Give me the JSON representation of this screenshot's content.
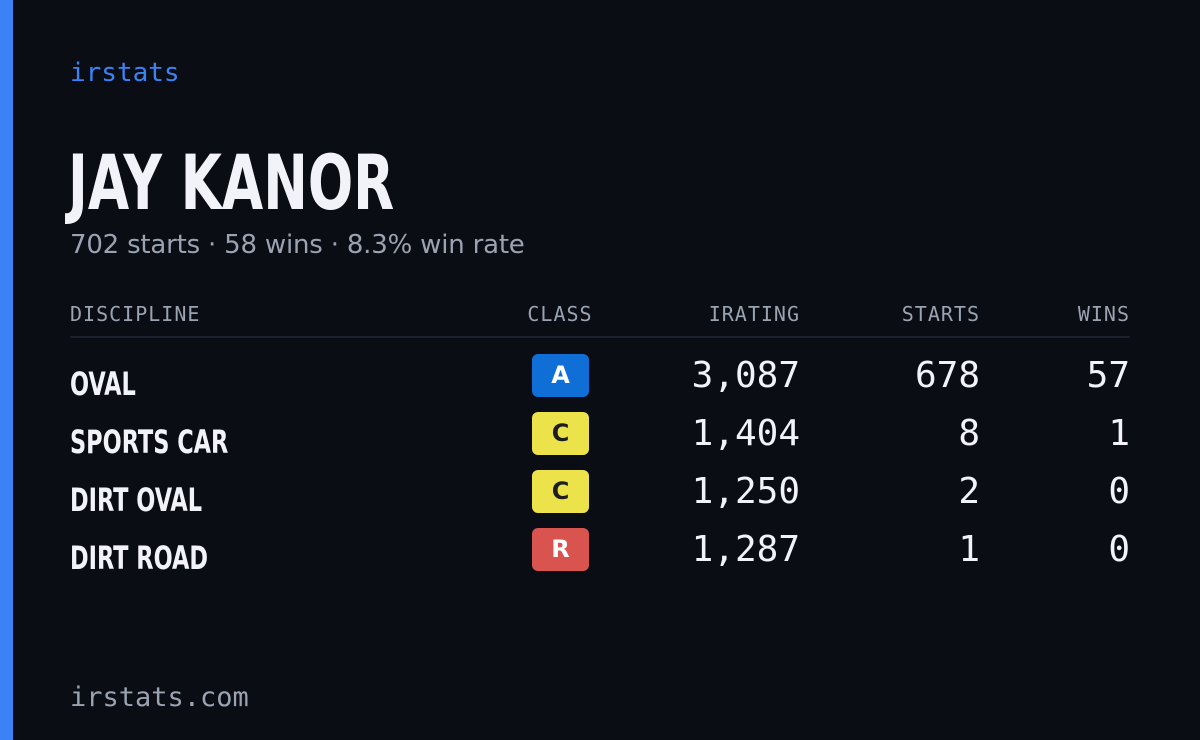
{
  "brand": "irstats",
  "driver": {
    "name": "JAY KANOR",
    "summary": "702 starts · 58 wins · 8.3% win rate"
  },
  "table": {
    "headers": {
      "discipline": "DISCIPLINE",
      "class": "CLASS",
      "irating": "IRATING",
      "starts": "STARTS",
      "wins": "WINS"
    },
    "rows": [
      {
        "discipline": "OVAL",
        "class": "A",
        "class_color": "#0f6fd6",
        "class_text_color": "#ffffff",
        "irating": "3,087",
        "starts": "678",
        "wins": "57"
      },
      {
        "discipline": "SPORTS CAR",
        "class": "C",
        "class_color": "#ece34a",
        "class_text_color": "#1d1d1d",
        "irating": "1,404",
        "starts": "8",
        "wins": "1"
      },
      {
        "discipline": "DIRT OVAL",
        "class": "C",
        "class_color": "#ece34a",
        "class_text_color": "#1d1d1d",
        "irating": "1,250",
        "starts": "2",
        "wins": "0"
      },
      {
        "discipline": "DIRT ROAD",
        "class": "R",
        "class_color": "#d9534f",
        "class_text_color": "#ffffff",
        "irating": "1,287",
        "starts": "1",
        "wins": "0"
      }
    ]
  },
  "footer": "irstats.com",
  "colors": {
    "background": "#0b0d14",
    "accent": "#3b82f6",
    "text": "#f1f3f8",
    "muted": "#9aa3b2"
  }
}
